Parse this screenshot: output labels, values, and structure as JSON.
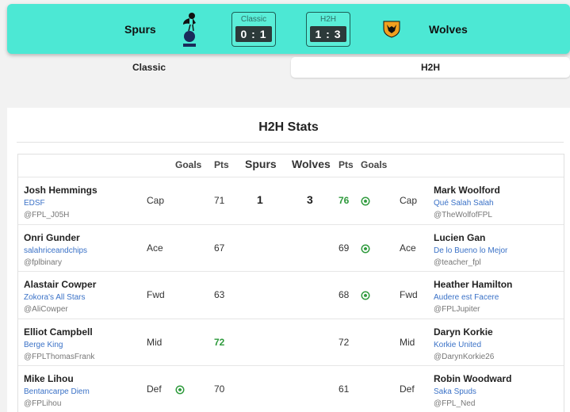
{
  "header": {
    "home_team": "Spurs",
    "away_team": "Wolves",
    "classic_label": "Classic",
    "classic_score": "0 : 1",
    "h2h_label": "H2H",
    "h2h_score": "1 : 3"
  },
  "tabs": {
    "classic": "Classic",
    "h2h": "H2H"
  },
  "panel": {
    "title": "H2H Stats"
  },
  "columns": {
    "goals_left": "Goals",
    "pts_left": "Pts",
    "home": "Spurs",
    "away": "Wolves",
    "pts_right": "Pts",
    "goals_right": "Goals"
  },
  "summary": {
    "home_goals": "1",
    "away_goals": "3"
  },
  "rows": [
    {
      "left": {
        "name": "Josh Hemmings",
        "team": "EDSF",
        "handle": "@FPL_J05H",
        "pos": "Cap",
        "pts": "71",
        "goal": false,
        "win": false
      },
      "right": {
        "name": "Mark Woolford",
        "team": "Qué Salah Salah",
        "handle": "@TheWolfofFPL",
        "pos": "Cap",
        "pts": "76",
        "goal": true,
        "win": true
      }
    },
    {
      "left": {
        "name": "Onri Gunder",
        "team": "salahriceandchips",
        "handle": "@fplbinary",
        "pos": "Ace",
        "pts": "67",
        "goal": false,
        "win": false
      },
      "right": {
        "name": "Lucien Gan",
        "team": "De lo Bueno lo Mejor",
        "handle": "@teacher_fpl",
        "pos": "Ace",
        "pts": "69",
        "goal": true,
        "win": false
      }
    },
    {
      "left": {
        "name": "Alastair Cowper",
        "team": "Zokora's All Stars",
        "handle": "@AliCowper",
        "pos": "Fwd",
        "pts": "63",
        "goal": false,
        "win": false
      },
      "right": {
        "name": "Heather Hamilton",
        "team": "Audere est Facere",
        "handle": "@FPLJupiter",
        "pos": "Fwd",
        "pts": "68",
        "goal": true,
        "win": false
      }
    },
    {
      "left": {
        "name": "Elliot Campbell",
        "team": "Berge King",
        "handle": "@FPLThomasFrank",
        "pos": "Mid",
        "pts": "72",
        "goal": false,
        "win": true
      },
      "right": {
        "name": "Daryn Korkie",
        "team": "Korkie United",
        "handle": "@DarynKorkie26",
        "pos": "Mid",
        "pts": "72",
        "goal": false,
        "win": false
      }
    },
    {
      "left": {
        "name": "Mike Lihou",
        "team": "Bentancarpe Diem",
        "handle": "@FPLihou",
        "pos": "Def",
        "pts": "70",
        "goal": true,
        "win": false
      },
      "right": {
        "name": "Robin Woodward",
        "team": "Saka Spuds",
        "handle": "@FPL_Ned",
        "pos": "Def",
        "pts": "61",
        "goal": false,
        "win": false
      }
    }
  ],
  "colors": {
    "header_bg": "#4ce8d4",
    "win_pts": "#2e9a3c",
    "team_link": "#3b72c7"
  },
  "icons": {
    "home_crest": "spurs-crest-icon",
    "away_crest": "wolves-crest-icon",
    "goal": "football-icon"
  }
}
